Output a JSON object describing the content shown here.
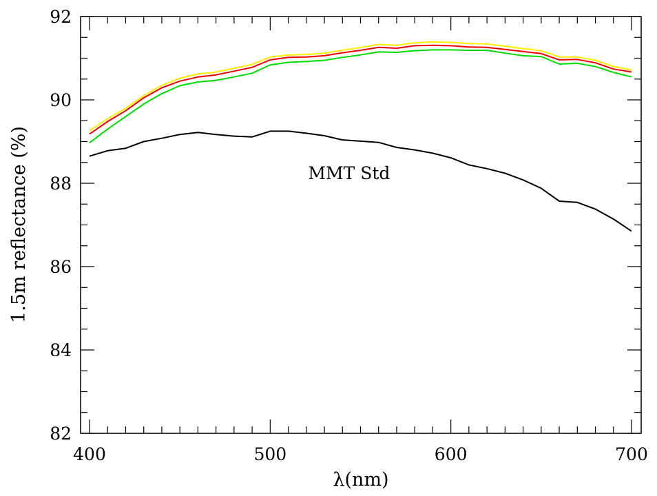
{
  "chart_data": {
    "type": "line",
    "xlabel": "λ(nm)",
    "ylabel": "1.5m reflectance (%)",
    "xlim": [
      400,
      700
    ],
    "ylim": [
      82,
      92
    ],
    "x_ticks": [
      400,
      500,
      600,
      700
    ],
    "y_ticks": [
      82,
      84,
      86,
      88,
      90,
      92
    ],
    "x_minor_step": 10,
    "y_minor_step": 0.5,
    "grid": false,
    "annotation": {
      "text": "MMT Std",
      "x": 521,
      "y": 88.1
    },
    "x": [
      400,
      410,
      420,
      430,
      440,
      450,
      460,
      470,
      480,
      490,
      500,
      510,
      520,
      530,
      540,
      550,
      560,
      570,
      580,
      590,
      600,
      610,
      620,
      630,
      640,
      650,
      660,
      670,
      680,
      690,
      700
    ],
    "series": [
      {
        "color": "#000000",
        "values": [
          88.65,
          88.78,
          88.84,
          89.0,
          89.08,
          89.17,
          89.22,
          89.17,
          89.13,
          89.11,
          89.25,
          89.25,
          89.2,
          89.14,
          89.04,
          89.01,
          88.98,
          88.86,
          88.8,
          88.72,
          88.61,
          88.44,
          88.35,
          88.24,
          88.08,
          87.88,
          87.57,
          87.54,
          87.38,
          87.14,
          86.85
        ]
      },
      {
        "color": "#00dd00",
        "values": [
          88.97,
          89.3,
          89.6,
          89.9,
          90.15,
          90.34,
          90.43,
          90.47,
          90.55,
          90.64,
          90.84,
          90.9,
          90.92,
          90.95,
          91.02,
          91.08,
          91.15,
          91.14,
          91.18,
          91.2,
          91.2,
          91.19,
          91.19,
          91.12,
          91.06,
          91.04,
          90.86,
          90.88,
          90.8,
          90.66,
          90.55
        ]
      },
      {
        "color": "#ffee00",
        "values": [
          89.26,
          89.55,
          89.8,
          90.1,
          90.35,
          90.52,
          90.62,
          90.67,
          90.76,
          90.85,
          91.03,
          91.08,
          91.09,
          91.12,
          91.19,
          91.26,
          91.33,
          91.31,
          91.37,
          91.39,
          91.38,
          91.35,
          91.34,
          91.29,
          91.23,
          91.18,
          91.03,
          91.03,
          90.95,
          90.8,
          90.72
        ]
      },
      {
        "color": "#ee0000",
        "values": [
          89.18,
          89.48,
          89.74,
          90.05,
          90.29,
          90.45,
          90.55,
          90.6,
          90.69,
          90.78,
          90.96,
          91.02,
          91.03,
          91.06,
          91.13,
          91.19,
          91.26,
          91.24,
          91.3,
          91.31,
          91.3,
          91.27,
          91.26,
          91.21,
          91.16,
          91.11,
          90.96,
          90.97,
          90.89,
          90.74,
          90.67
        ]
      }
    ]
  }
}
